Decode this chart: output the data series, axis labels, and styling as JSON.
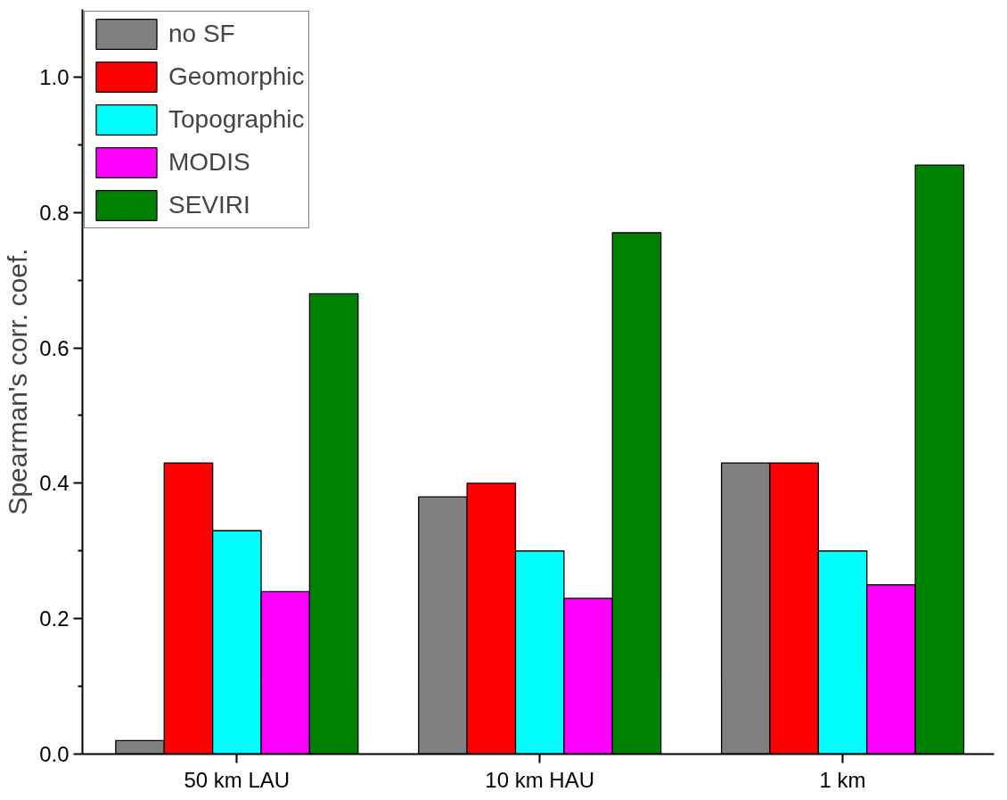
{
  "chart_data": {
    "type": "bar",
    "ylabel": "Spearman's corr. coef.",
    "categories": [
      "50 km LAU",
      "10 km HAU",
      "1 km"
    ],
    "series": [
      {
        "name": "no SF",
        "color": "#808080",
        "values": [
          0.02,
          0.38,
          0.43
        ]
      },
      {
        "name": "Geomorphic",
        "color": "#ff0000",
        "values": [
          0.43,
          0.4,
          0.43
        ]
      },
      {
        "name": "Topographic",
        "color": "#00ffff",
        "values": [
          0.33,
          0.3,
          0.3
        ]
      },
      {
        "name": "MODIS",
        "color": "#ff00ff",
        "values": [
          0.24,
          0.23,
          0.25
        ]
      },
      {
        "name": "SEVIRI",
        "color": "#008000",
        "values": [
          0.68,
          0.77,
          0.87
        ]
      }
    ],
    "ylim": [
      0,
      1.1
    ],
    "yticks": [
      {
        "value": 0,
        "label": "0.0"
      },
      {
        "value": 0.2,
        "label": "0.2"
      },
      {
        "value": 0.4,
        "label": "0.4"
      },
      {
        "value": 0.6,
        "label": "0.6"
      },
      {
        "value": 0.8,
        "label": "0.8"
      },
      {
        "value": 1.0,
        "label": "1.0"
      }
    ],
    "grid": false,
    "legend": "top left"
  }
}
